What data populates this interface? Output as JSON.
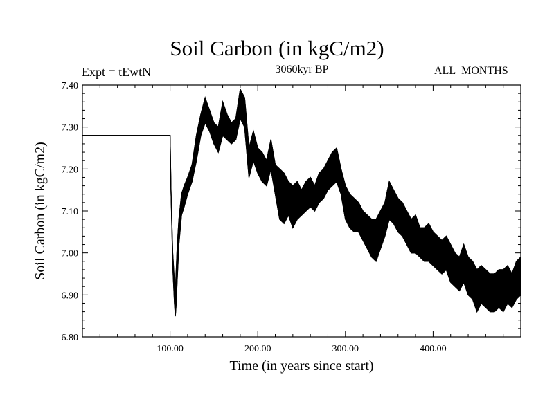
{
  "chart_data": {
    "type": "line",
    "title": "Soil Carbon (in kgC/m2)",
    "subtitle": "3060kyr BP",
    "experiment_label": "Expt = tEwtN",
    "months_label": "ALL_MONTHS",
    "xlabel": "Time (in years since start)",
    "ylabel": "Soil Carbon (in kgC/m2)",
    "xlim": [
      0,
      500
    ],
    "ylim": [
      6.8,
      7.4
    ],
    "x_ticks": [
      100,
      200,
      300,
      400
    ],
    "x_tick_labels": [
      "100.00",
      "200.00",
      "300.00",
      "400.00"
    ],
    "y_ticks": [
      6.8,
      6.9,
      7.0,
      7.1,
      7.2,
      7.3,
      7.4
    ],
    "y_tick_labels": [
      "6.80",
      "6.90",
      "7.00",
      "7.10",
      "7.20",
      "7.30",
      "7.40"
    ],
    "grid": false,
    "line_color": "#000000",
    "series": [
      {
        "name": "Soil Carbon",
        "x": [
          0,
          99.5,
          100,
          101,
          103,
          105,
          106,
          107,
          108,
          110,
          113,
          116,
          120,
          125,
          130,
          135,
          140,
          145,
          150,
          155,
          160,
          165,
          170,
          175,
          180,
          185,
          190,
          195,
          200,
          205,
          210,
          215,
          220,
          225,
          230,
          235,
          240,
          245,
          250,
          255,
          260,
          265,
          270,
          275,
          280,
          285,
          290,
          295,
          300,
          305,
          310,
          315,
          320,
          325,
          330,
          335,
          340,
          345,
          350,
          355,
          360,
          365,
          370,
          375,
          380,
          385,
          390,
          395,
          400,
          405,
          410,
          415,
          420,
          425,
          430,
          435,
          440,
          445,
          450,
          455,
          460,
          465,
          470,
          475,
          480,
          485,
          490,
          495,
          500
        ],
        "upper": [
          7.28,
          7.28,
          7.28,
          7.15,
          7.0,
          6.93,
          6.91,
          6.96,
          7.01,
          7.08,
          7.14,
          7.16,
          7.18,
          7.21,
          7.28,
          7.33,
          7.37,
          7.34,
          7.31,
          7.3,
          7.36,
          7.33,
          7.31,
          7.32,
          7.39,
          7.37,
          7.25,
          7.29,
          7.25,
          7.24,
          7.22,
          7.27,
          7.21,
          7.2,
          7.19,
          7.17,
          7.16,
          7.17,
          7.15,
          7.17,
          7.18,
          7.16,
          7.19,
          7.2,
          7.22,
          7.24,
          7.25,
          7.2,
          7.16,
          7.14,
          7.13,
          7.12,
          7.1,
          7.09,
          7.08,
          7.08,
          7.1,
          7.12,
          7.17,
          7.15,
          7.13,
          7.12,
          7.1,
          7.08,
          7.09,
          7.06,
          7.06,
          7.07,
          7.05,
          7.04,
          7.03,
          7.04,
          7.02,
          7.0,
          6.99,
          7.02,
          6.99,
          6.98,
          6.96,
          6.97,
          6.96,
          6.95,
          6.95,
          6.96,
          6.96,
          6.97,
          6.95,
          6.98,
          6.99
        ],
        "lower": [
          7.28,
          7.28,
          7.28,
          7.15,
          6.97,
          6.88,
          6.85,
          6.88,
          6.93,
          7.02,
          7.09,
          7.11,
          7.14,
          7.17,
          7.22,
          7.28,
          7.31,
          7.29,
          7.26,
          7.24,
          7.28,
          7.27,
          7.26,
          7.27,
          7.32,
          7.3,
          7.18,
          7.22,
          7.19,
          7.17,
          7.16,
          7.2,
          7.14,
          7.08,
          7.07,
          7.09,
          7.06,
          7.08,
          7.09,
          7.1,
          7.11,
          7.1,
          7.12,
          7.13,
          7.15,
          7.16,
          7.17,
          7.14,
          7.08,
          7.06,
          7.05,
          7.05,
          7.03,
          7.01,
          6.99,
          6.98,
          7.01,
          7.04,
          7.08,
          7.07,
          7.05,
          7.04,
          7.02,
          7.0,
          7.0,
          6.99,
          6.98,
          6.98,
          6.97,
          6.96,
          6.95,
          6.96,
          6.93,
          6.92,
          6.91,
          6.93,
          6.9,
          6.89,
          6.86,
          6.88,
          6.87,
          6.86,
          6.86,
          6.87,
          6.86,
          6.88,
          6.87,
          6.89,
          6.9
        ]
      }
    ]
  }
}
